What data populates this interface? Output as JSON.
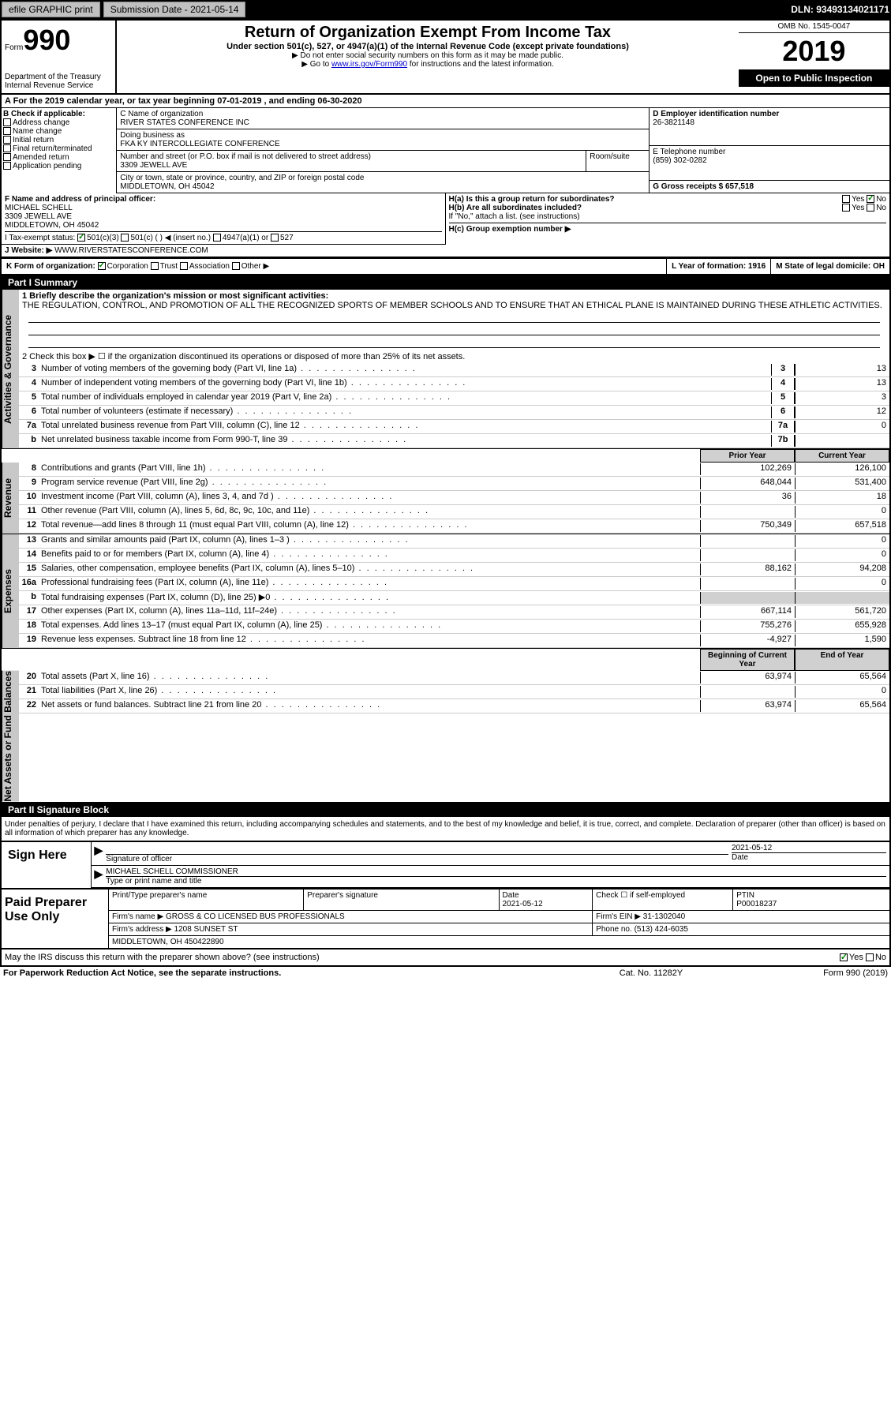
{
  "top_bar": {
    "efile_label": "efile GRAPHIC print",
    "submission_label": "Submission Date - 2021-05-14",
    "dln": "DLN: 93493134021171"
  },
  "header": {
    "form_word": "Form",
    "form_number": "990",
    "dept": "Department of the Treasury",
    "irs": "Internal Revenue Service",
    "title": "Return of Organization Exempt From Income Tax",
    "subtitle": "Under section 501(c), 527, or 4947(a)(1) of the Internal Revenue Code (except private foundations)",
    "inst1": "▶ Do not enter social security numbers on this form as it may be made public.",
    "inst2_pre": "▶ Go to ",
    "inst2_link": "www.irs.gov/Form990",
    "inst2_post": " for instructions and the latest information.",
    "omb": "OMB No. 1545-0047",
    "year": "2019",
    "open": "Open to Public Inspection"
  },
  "period": {
    "text_a": "A For the 2019 calendar year, or tax year beginning 07-01-2019",
    "text_b": ", and ending 06-30-2020"
  },
  "section_b": {
    "label": "B Check if applicable:",
    "opts": [
      "Address change",
      "Name change",
      "Initial return",
      "Final return/terminated",
      "Amended return",
      "Application pending"
    ]
  },
  "section_c": {
    "name_label": "C Name of organization",
    "name": "RIVER STATES CONFERENCE INC",
    "dba_label": "Doing business as",
    "dba": "FKA KY INTERCOLLEGIATE CONFERENCE",
    "addr_label": "Number and street (or P.O. box if mail is not delivered to street address)",
    "room_label": "Room/suite",
    "addr": "3309 JEWELL AVE",
    "city_label": "City or town, state or province, country, and ZIP or foreign postal code",
    "city": "MIDDLETOWN, OH  45042"
  },
  "section_d": {
    "label": "D Employer identification number",
    "value": "26-3821148"
  },
  "section_e": {
    "label": "E Telephone number",
    "value": "(859) 302-0282"
  },
  "section_g": {
    "label": "G Gross receipts $ 657,518"
  },
  "section_f": {
    "label": "F Name and address of principal officer:",
    "name": "MICHAEL SCHELL",
    "addr1": "3309 JEWELL AVE",
    "addr2": "MIDDLETOWN, OH  45042"
  },
  "section_h": {
    "ha": "H(a)  Is this a group return for subordinates?",
    "hb": "H(b)  Are all subordinates included?",
    "hb_note": "If \"No,\" attach a list. (see instructions)",
    "hc": "H(c)  Group exemption number ▶",
    "yes": "Yes",
    "no": "No"
  },
  "section_i": {
    "label": "I Tax-exempt status:",
    "o1": "501(c)(3)",
    "o2": "501(c) (   ) ◀ (insert no.)",
    "o3": "4947(a)(1) or",
    "o4": "527"
  },
  "section_j": {
    "label": "J   Website: ▶",
    "value": "WWW.RIVERSTATESCONFERENCE.COM"
  },
  "section_k": {
    "label": "K Form of organization:",
    "corp": "Corporation",
    "trust": "Trust",
    "assoc": "Association",
    "other": "Other ▶"
  },
  "section_l": {
    "label": "L Year of formation: 1916"
  },
  "section_m": {
    "label": "M State of legal domicile: OH"
  },
  "part1": {
    "header": "Part I      Summary",
    "line1_label": "1  Briefly describe the organization's mission or most significant activities:",
    "mission": "THE REGULATION, CONTROL, AND PROMOTION OF ALL THE RECOGNIZED SPORTS OF MEMBER SCHOOLS AND TO ENSURE THAT AN ETHICAL PLANE IS MAINTAINED DURING THESE ATHLETIC ACTIVITIES.",
    "line2": "2   Check this box ▶ ☐  if the organization discontinued its operations or disposed of more than 25% of its net assets.",
    "lines_single": [
      {
        "n": "3",
        "t": "Number of voting members of the governing body (Part VI, line 1a)",
        "b": "3",
        "v": "13"
      },
      {
        "n": "4",
        "t": "Number of independent voting members of the governing body (Part VI, line 1b)",
        "b": "4",
        "v": "13"
      },
      {
        "n": "5",
        "t": "Total number of individuals employed in calendar year 2019 (Part V, line 2a)",
        "b": "5",
        "v": "3"
      },
      {
        "n": "6",
        "t": "Total number of volunteers (estimate if necessary)",
        "b": "6",
        "v": "12"
      },
      {
        "n": "7a",
        "t": "Total unrelated business revenue from Part VIII, column (C), line 12",
        "b": "7a",
        "v": "0"
      },
      {
        "n": "b",
        "t": "Net unrelated business taxable income from Form 990-T, line 39",
        "b": "7b",
        "v": ""
      }
    ],
    "col_prior": "Prior Year",
    "col_current": "Current Year",
    "revenue": [
      {
        "n": "8",
        "t": "Contributions and grants (Part VIII, line 1h)",
        "p": "102,269",
        "c": "126,100"
      },
      {
        "n": "9",
        "t": "Program service revenue (Part VIII, line 2g)",
        "p": "648,044",
        "c": "531,400"
      },
      {
        "n": "10",
        "t": "Investment income (Part VIII, column (A), lines 3, 4, and 7d )",
        "p": "36",
        "c": "18"
      },
      {
        "n": "11",
        "t": "Other revenue (Part VIII, column (A), lines 5, 6d, 8c, 9c, 10c, and 11e)",
        "p": "",
        "c": "0"
      },
      {
        "n": "12",
        "t": "Total revenue—add lines 8 through 11 (must equal Part VIII, column (A), line 12)",
        "p": "750,349",
        "c": "657,518"
      }
    ],
    "expenses": [
      {
        "n": "13",
        "t": "Grants and similar amounts paid (Part IX, column (A), lines 1–3 )",
        "p": "",
        "c": "0"
      },
      {
        "n": "14",
        "t": "Benefits paid to or for members (Part IX, column (A), line 4)",
        "p": "",
        "c": "0"
      },
      {
        "n": "15",
        "t": "Salaries, other compensation, employee benefits (Part IX, column (A), lines 5–10)",
        "p": "88,162",
        "c": "94,208"
      },
      {
        "n": "16a",
        "t": "Professional fundraising fees (Part IX, column (A), line 11e)",
        "p": "",
        "c": "0"
      },
      {
        "n": "b",
        "t": "Total fundraising expenses (Part IX, column (D), line 25) ▶0",
        "p": "shaded",
        "c": "shaded"
      },
      {
        "n": "17",
        "t": "Other expenses (Part IX, column (A), lines 11a–11d, 11f–24e)",
        "p": "667,114",
        "c": "561,720"
      },
      {
        "n": "18",
        "t": "Total expenses. Add lines 13–17 (must equal Part IX, column (A), line 25)",
        "p": "755,276",
        "c": "655,928"
      },
      {
        "n": "19",
        "t": "Revenue less expenses. Subtract line 18 from line 12",
        "p": "-4,927",
        "c": "1,590"
      }
    ],
    "col_begin": "Beginning of Current Year",
    "col_end": "End of Year",
    "netassets": [
      {
        "n": "20",
        "t": "Total assets (Part X, line 16)",
        "p": "63,974",
        "c": "65,564"
      },
      {
        "n": "21",
        "t": "Total liabilities (Part X, line 26)",
        "p": "",
        "c": "0"
      },
      {
        "n": "22",
        "t": "Net assets or fund balances. Subtract line 21 from line 20",
        "p": "63,974",
        "c": "65,564"
      }
    ],
    "side_activities": "Activities & Governance",
    "side_revenue": "Revenue",
    "side_expenses": "Expenses",
    "side_netassets": "Net Assets or Fund Balances"
  },
  "part2": {
    "header": "Part II     Signature Block",
    "penalty": "Under penalties of perjury, I declare that I have examined this return, including accompanying schedules and statements, and to the best of my knowledge and belief, it is true, correct, and complete. Declaration of preparer (other than officer) is based on all information of which preparer has any knowledge.",
    "sign_here": "Sign Here",
    "sig_officer": "Signature of officer",
    "sig_date": "2021-05-12",
    "date_label": "Date",
    "sig_name": "MICHAEL SCHELL  COMMISSIONER",
    "sig_name_label": "Type or print name and title",
    "paid_label": "Paid Preparer Use Only",
    "prep_name_label": "Print/Type preparer's name",
    "prep_sig_label": "Preparer's signature",
    "prep_date_label": "Date",
    "prep_date": "2021-05-12",
    "check_self": "Check ☐ if self-employed",
    "ptin_label": "PTIN",
    "ptin": "P00018237",
    "firm_name_label": "Firm's name    ▶",
    "firm_name": "GROSS & CO LICENSED BUS PROFESSIONALS",
    "firm_ein_label": "Firm's EIN ▶",
    "firm_ein": "31-1302040",
    "firm_addr_label": "Firm's address ▶",
    "firm_addr1": "1208 SUNSET ST",
    "firm_addr2": "MIDDLETOWN, OH  450422890",
    "phone_label": "Phone no.",
    "phone": "(513) 424-6035",
    "discuss": "May the IRS discuss this return with the preparer shown above? (see instructions)",
    "yes": "Yes",
    "no": "No"
  },
  "footer": {
    "left": "For Paperwork Reduction Act Notice, see the separate instructions.",
    "mid": "Cat. No. 11282Y",
    "right": "Form 990 (2019)"
  }
}
